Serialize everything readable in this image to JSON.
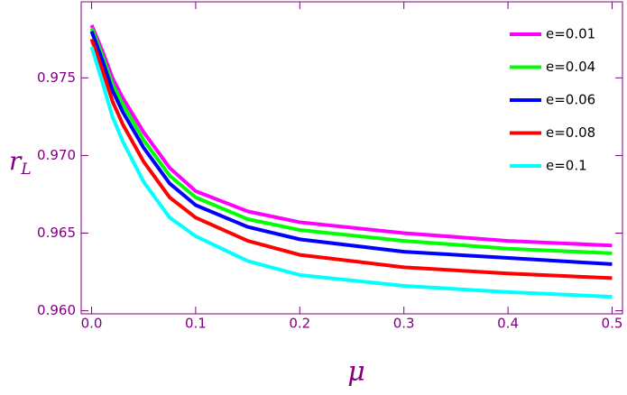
{
  "chart_data": {
    "type": "line",
    "xlabel": "μ",
    "ylabel": "r",
    "ylabel_subscript": "L",
    "x": [
      0,
      0.01,
      0.02,
      0.03,
      0.05,
      0.075,
      0.1,
      0.15,
      0.2,
      0.3,
      0.4,
      0.5
    ],
    "series": [
      {
        "name": "e=0.01",
        "color": "#ff00ff",
        "values": [
          0.9784,
          0.9768,
          0.975,
          0.9737,
          0.9715,
          0.9692,
          0.9677,
          0.9664,
          0.9657,
          0.965,
          0.9645,
          0.9642
        ]
      },
      {
        "name": "e=0.04",
        "color": "#00ff00",
        "values": [
          0.9782,
          0.9765,
          0.9746,
          0.9733,
          0.971,
          0.9687,
          0.9673,
          0.9659,
          0.9652,
          0.9645,
          0.964,
          0.9637
        ]
      },
      {
        "name": "e=0.06",
        "color": "#0000ff",
        "values": [
          0.978,
          0.9762,
          0.9742,
          0.9728,
          0.9705,
          0.9682,
          0.9668,
          0.9654,
          0.9646,
          0.9638,
          0.9634,
          0.963
        ]
      },
      {
        "name": "e=0.08",
        "color": "#ff0000",
        "values": [
          0.9775,
          0.9756,
          0.9735,
          0.972,
          0.9696,
          0.9673,
          0.966,
          0.9645,
          0.9636,
          0.9628,
          0.9624,
          0.9621
        ]
      },
      {
        "name": "e=0.1",
        "color": "#00ffff",
        "values": [
          0.977,
          0.9748,
          0.9725,
          0.9709,
          0.9683,
          0.966,
          0.9648,
          0.9632,
          0.9623,
          0.9616,
          0.9612,
          0.9609
        ]
      }
    ],
    "xlim": [
      -0.01,
      0.51
    ],
    "ylim": [
      0.9598,
      0.9799
    ],
    "xticks": [
      {
        "value": 0,
        "label": "0.0"
      },
      0.1,
      0.2,
      0.3,
      0.4,
      0.5
    ],
    "yticks": [
      {
        "value": 0.96,
        "label": "0.960"
      },
      {
        "value": 0.965,
        "label": "0.965"
      },
      {
        "value": 0.97,
        "label": "0.970"
      },
      0.975
    ],
    "grid": false,
    "legend": "top-right",
    "axis_color": "#800080"
  }
}
